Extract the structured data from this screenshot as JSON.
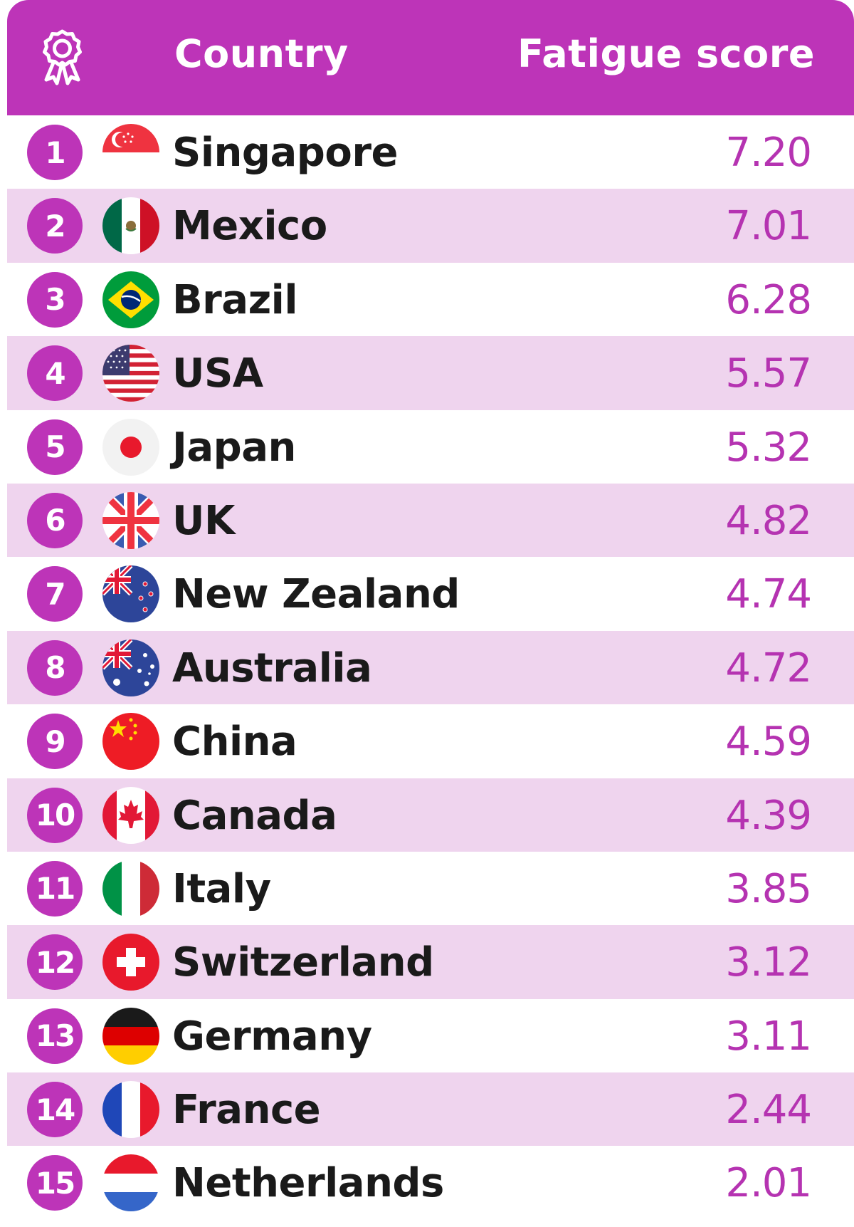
{
  "colors": {
    "header": "#bd34b8",
    "row_alt": "#efd4ee",
    "score_text": "#b533b1"
  },
  "header": {
    "icon": "award-ribbon-icon",
    "country_label": "Country",
    "score_label": "Fatigue score"
  },
  "chart_data": {
    "type": "table",
    "columns": [
      "Country",
      "Fatigue score"
    ],
    "rows": [
      {
        "rank": "1",
        "country": "Singapore",
        "score": "7.20",
        "flag": "singapore-flag-icon"
      },
      {
        "rank": "2",
        "country": "Mexico",
        "score": "7.01",
        "flag": "mexico-flag-icon"
      },
      {
        "rank": "3",
        "country": "Brazil",
        "score": "6.28",
        "flag": "brazil-flag-icon"
      },
      {
        "rank": "4",
        "country": "USA",
        "score": "5.57",
        "flag": "usa-flag-icon"
      },
      {
        "rank": "5",
        "country": "Japan",
        "score": "5.32",
        "flag": "japan-flag-icon"
      },
      {
        "rank": "6",
        "country": "UK",
        "score": "4.82",
        "flag": "uk-flag-icon"
      },
      {
        "rank": "7",
        "country": "New Zealand",
        "score": "4.74",
        "flag": "new-zealand-flag-icon"
      },
      {
        "rank": "8",
        "country": "Australia",
        "score": "4.72",
        "flag": "australia-flag-icon"
      },
      {
        "rank": "9",
        "country": "China",
        "score": "4.59",
        "flag": "china-flag-icon"
      },
      {
        "rank": "10",
        "country": "Canada",
        "score": "4.39",
        "flag": "canada-flag-icon"
      },
      {
        "rank": "11",
        "country": "Italy",
        "score": "3.85",
        "flag": "italy-flag-icon"
      },
      {
        "rank": "12",
        "country": "Switzerland",
        "score": "3.12",
        "flag": "switzerland-flag-icon"
      },
      {
        "rank": "13",
        "country": "Germany",
        "score": "3.11",
        "flag": "germany-flag-icon"
      },
      {
        "rank": "14",
        "country": "France",
        "score": "2.44",
        "flag": "france-flag-icon"
      },
      {
        "rank": "15",
        "country": "Netherlands",
        "score": "2.01",
        "flag": "netherlands-flag-icon"
      }
    ]
  }
}
